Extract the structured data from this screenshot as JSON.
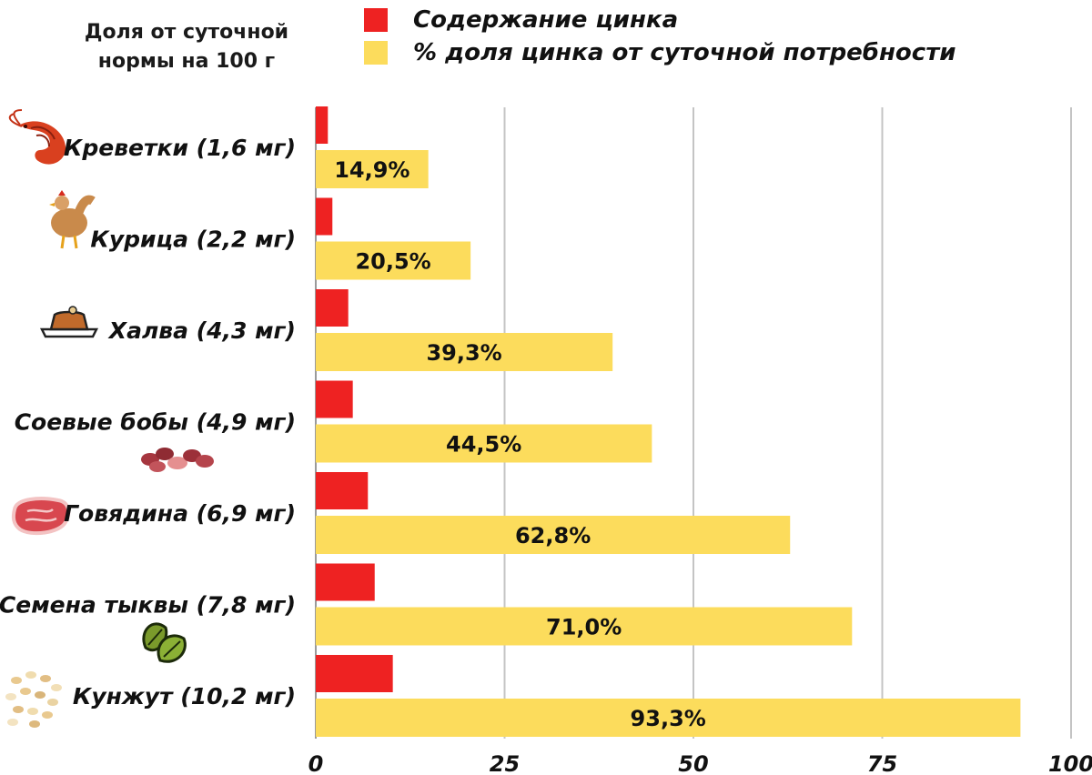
{
  "header": {
    "side_title_line1": "Доля от суточной",
    "side_title_line2": "нормы на 100 г"
  },
  "legend": [
    {
      "label": "Содержание цинка",
      "color": "#ee2222"
    },
    {
      "label": "% доля цинка от суточной потребности",
      "color": "#fcdc5c"
    }
  ],
  "icons": [
    "shrimp-icon",
    "chicken-icon",
    "halva-icon",
    "soybeans-icon",
    "beef-steak-icon",
    "pumpkin-seeds-icon",
    "sesame-seeds-icon"
  ],
  "chart_data": {
    "type": "bar",
    "orientation": "horizontal",
    "categories": [
      "Креветки (1,6 мг)",
      "Курица (2,2 мг)",
      "Халва (4,3 мг)",
      "Соевые бобы (4,9 мг)",
      "Говядина (6,9 мг)",
      "Семена тыквы (7,8 мг)",
      "Кунжут (10,2 мг)"
    ],
    "series": [
      {
        "name": "Содержание цинка",
        "values": [
          1.6,
          2.2,
          4.3,
          4.9,
          6.9,
          7.8,
          10.2
        ],
        "color": "#ee2222"
      },
      {
        "name": "% доля цинка от суточной потребности",
        "values": [
          14.9,
          20.5,
          39.3,
          44.5,
          62.8,
          71.0,
          93.3
        ],
        "color": "#fcdc5c",
        "data_labels": [
          "14,9%",
          "20,5%",
          "39,3%",
          "44,5%",
          "62,8%",
          "71,0%",
          "93,3%"
        ]
      }
    ],
    "xlim": [
      0,
      100
    ],
    "xticks": [
      0,
      25,
      50,
      75,
      100
    ],
    "xtick_labels": [
      "0",
      "25",
      "50",
      "75",
      "100"
    ],
    "grid": true
  }
}
